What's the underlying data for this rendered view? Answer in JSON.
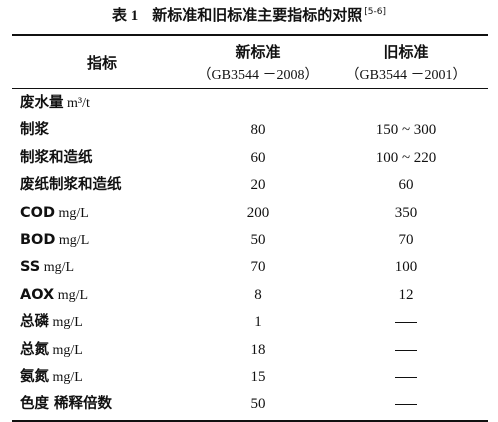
{
  "caption": {
    "number": "表 1",
    "title": "新标准和旧标准主要指标的对照",
    "ref": "[5-6]"
  },
  "header": {
    "col_indicator": "指标",
    "col_new": "新标准",
    "col_new_std": "（GB3544 －2008）",
    "col_old": "旧标准",
    "col_old_std": "（GB3544 －2001）"
  },
  "rows": [
    {
      "name": "废水量",
      "unit": " m³/t",
      "new": "",
      "old": ""
    },
    {
      "name": "制浆",
      "unit": "",
      "new": "80",
      "old": "150 ~ 300"
    },
    {
      "name": "制浆和造纸",
      "unit": "",
      "new": "60",
      "old": "100 ~ 220"
    },
    {
      "name": "废纸制浆和造纸",
      "unit": "",
      "new": "20",
      "old": "60"
    },
    {
      "name": "COD",
      "unit": " mg/L",
      "new": "200",
      "old": "350"
    },
    {
      "name": "BOD",
      "unit": " mg/L",
      "new": "50",
      "old": "70"
    },
    {
      "name": "SS",
      "unit": " mg/L",
      "new": "70",
      "old": "100"
    },
    {
      "name": "AOX",
      "unit": " mg/L",
      "new": "8",
      "old": "12"
    },
    {
      "name": "总磷",
      "unit": " mg/L",
      "new": "1",
      "old": "—"
    },
    {
      "name": "总氮",
      "unit": " mg/L",
      "new": "18",
      "old": "—"
    },
    {
      "name": "氨氮",
      "unit": " mg/L",
      "new": "15",
      "old": "—"
    },
    {
      "name": "色度 稀释倍数",
      "unit": "",
      "new": "50",
      "old": "—"
    }
  ]
}
